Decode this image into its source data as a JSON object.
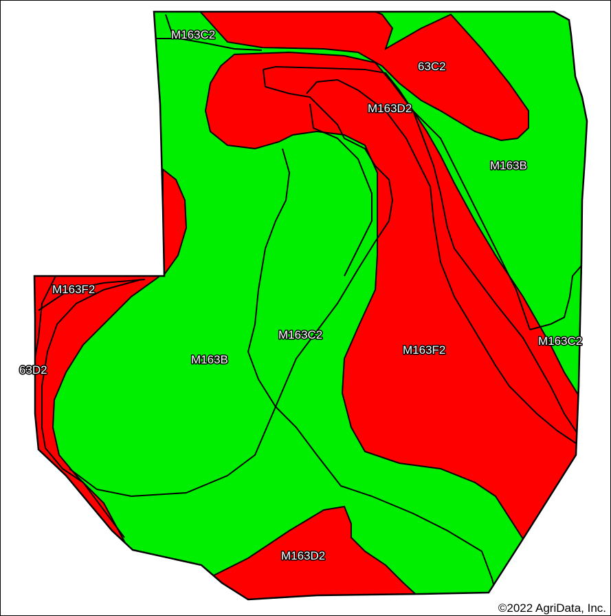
{
  "map": {
    "colors": {
      "red_unit": "#ff0000",
      "green_unit": "#00ee00",
      "boundary": "#000000",
      "background": "#ffffff"
    },
    "labels": [
      "M163C2",
      "63C2",
      "M163D2",
      "M163B",
      "M163F2",
      "63D2",
      "M163B",
      "M163C2",
      "M163F2",
      "M163C2",
      "M163D2"
    ]
  },
  "copyright": "©2022 AgriData, Inc."
}
